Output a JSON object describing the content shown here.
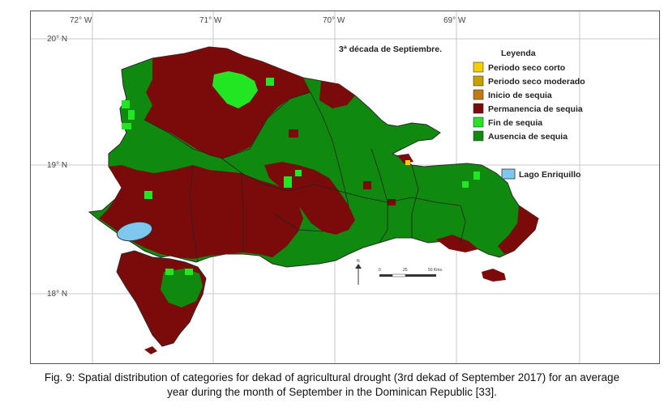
{
  "map": {
    "title": "3ª década de Septiembre.",
    "longitude_ticks": [
      "72° W",
      "71° W",
      "70° W",
      "69° W"
    ],
    "latitude_ticks": [
      "20° N",
      "19° N",
      "18° N"
    ],
    "legend": {
      "title": "Leyenda",
      "items": [
        {
          "label": "Periodo seco corto",
          "color": "#f2cf00"
        },
        {
          "label": "Periodo seco moderado",
          "color": "#c8a000"
        },
        {
          "label": "Inicio de sequia",
          "color": "#c07a10"
        },
        {
          "label": "Permanencia de sequia",
          "color": "#7b0b0b"
        },
        {
          "label": "Fin de sequia",
          "color": "#22e622"
        },
        {
          "label": "Ausencia de sequia",
          "color": "#0f8a0f"
        }
      ]
    },
    "lake": {
      "label": "Lago Enriquillo",
      "color": "#7ec8f0"
    },
    "north_arrow": "N",
    "scale_labels": [
      "0",
      "25",
      "50 Kms."
    ]
  },
  "caption": {
    "line1": "Fig. 9: Spatial distribution of categories for dekad of agricultural drought (3rd dekad of September 2017) for an average",
    "line2": "year during the month of September in the Dominican Republic [33]."
  }
}
